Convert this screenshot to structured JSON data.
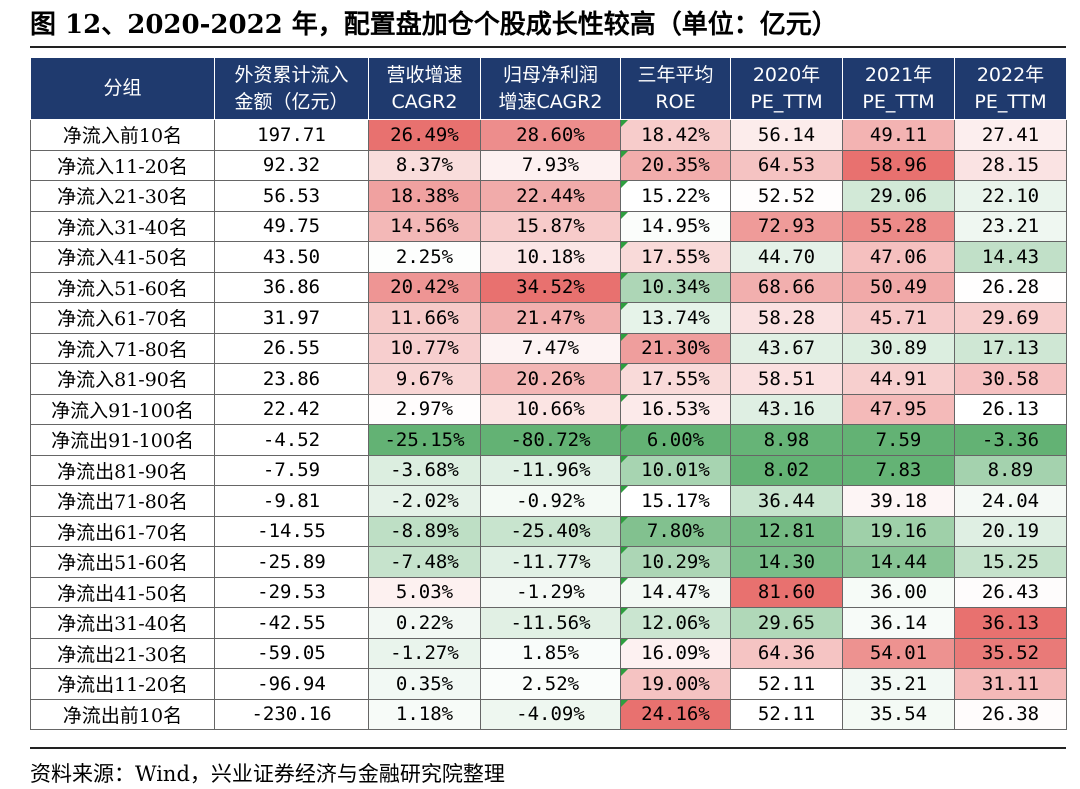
{
  "title": "图 12、2020-2022 年，配置盘加仓个股成长性较高（单位：亿元）",
  "source": "资料来源：Wind，兴业证券经济与金融研究院整理",
  "table": {
    "headers": [
      [
        "分组"
      ],
      [
        "外资累计流入",
        "金额（亿元）"
      ],
      [
        "营收增速",
        "CAGR2"
      ],
      [
        "归母净利润",
        "增速CAGR2"
      ],
      [
        "三年平均",
        "ROE"
      ],
      [
        "2020年",
        "PE_TTM"
      ],
      [
        "2021年",
        "PE_TTM"
      ],
      [
        "2022年",
        "PE_TTM"
      ]
    ],
    "rows": [
      [
        "净流入前10名",
        "197.71",
        "26.49%",
        "28.60%",
        "18.42%",
        "56.14",
        "49.11",
        "27.41"
      ],
      [
        "净流入11-20名",
        "92.32",
        "8.37%",
        "7.93%",
        "20.35%",
        "64.53",
        "58.96",
        "28.15"
      ],
      [
        "净流入21-30名",
        "56.53",
        "18.38%",
        "22.44%",
        "15.22%",
        "52.52",
        "29.06",
        "22.10"
      ],
      [
        "净流入31-40名",
        "49.75",
        "14.56%",
        "15.87%",
        "14.95%",
        "72.93",
        "55.28",
        "23.21"
      ],
      [
        "净流入41-50名",
        "43.50",
        "2.25%",
        "10.18%",
        "17.55%",
        "44.70",
        "47.06",
        "14.43"
      ],
      [
        "净流入51-60名",
        "36.86",
        "20.42%",
        "34.52%",
        "10.34%",
        "68.66",
        "50.49",
        "26.28"
      ],
      [
        "净流入61-70名",
        "31.97",
        "11.66%",
        "21.47%",
        "13.74%",
        "58.28",
        "45.71",
        "29.69"
      ],
      [
        "净流入71-80名",
        "26.55",
        "10.77%",
        "7.47%",
        "21.30%",
        "43.67",
        "30.89",
        "17.13"
      ],
      [
        "净流入81-90名",
        "23.86",
        "9.67%",
        "20.26%",
        "17.55%",
        "58.51",
        "44.91",
        "30.58"
      ],
      [
        "净流入91-100名",
        "22.42",
        "2.97%",
        "10.66%",
        "16.53%",
        "43.16",
        "47.95",
        "26.13"
      ],
      [
        "净流出91-100名",
        "-4.52",
        "-25.15%",
        "-80.72%",
        "6.00%",
        "8.98",
        "7.59",
        "-3.36"
      ],
      [
        "净流出81-90名",
        "-7.59",
        "-3.68%",
        "-11.96%",
        "10.01%",
        "8.02",
        "7.83",
        "8.89"
      ],
      [
        "净流出71-80名",
        "-9.81",
        "-2.02%",
        "-0.92%",
        "15.17%",
        "36.44",
        "39.18",
        "24.04"
      ],
      [
        "净流出61-70名",
        "-14.55",
        "-8.89%",
        "-25.40%",
        "7.80%",
        "12.81",
        "19.16",
        "20.19"
      ],
      [
        "净流出51-60名",
        "-25.89",
        "-7.48%",
        "-11.77%",
        "10.29%",
        "14.30",
        "14.44",
        "15.25"
      ],
      [
        "净流出41-50名",
        "-29.53",
        "5.03%",
        "-1.29%",
        "14.47%",
        "81.60",
        "36.00",
        "26.43"
      ],
      [
        "净流出31-40名",
        "-42.55",
        "0.22%",
        "-11.56%",
        "12.06%",
        "29.65",
        "36.14",
        "36.13"
      ],
      [
        "净流出21-30名",
        "-59.05",
        "-1.27%",
        "1.85%",
        "16.09%",
        "64.36",
        "54.01",
        "35.52"
      ],
      [
        "净流出11-20名",
        "-96.94",
        "0.35%",
        "2.52%",
        "19.00%",
        "52.11",
        "35.21",
        "31.11"
      ],
      [
        "净流出前10名",
        "-230.16",
        "1.18%",
        "-4.09%",
        "24.16%",
        "52.11",
        "35.54",
        "26.38"
      ]
    ],
    "colors": {
      "header_bg": "#1f3a6e",
      "header_text": "#ffffff",
      "high_red": "#e8716f",
      "low_green": "#63b274",
      "neutral": "#ffffff"
    }
  }
}
